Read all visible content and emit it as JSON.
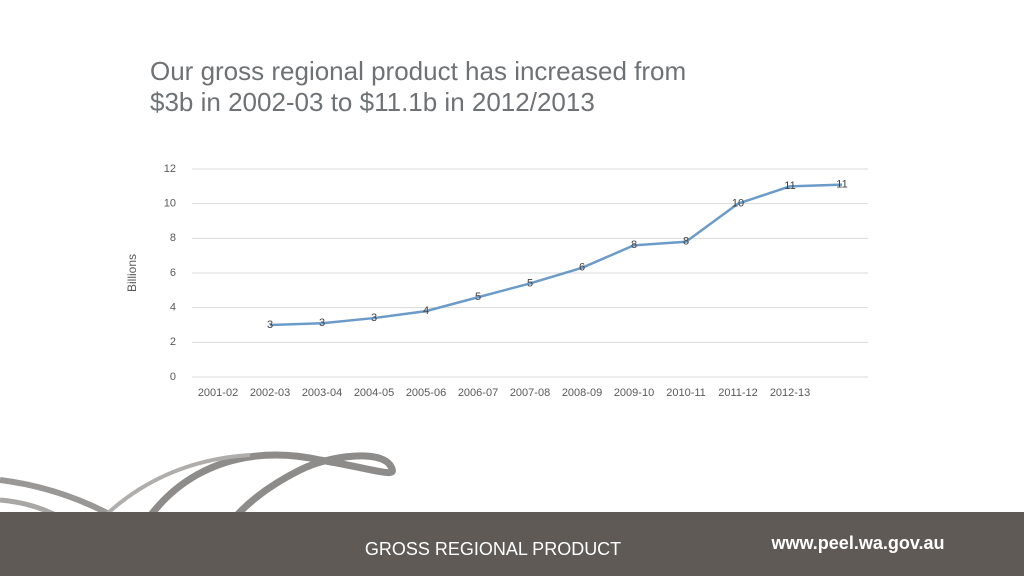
{
  "chart_data": {
    "type": "line",
    "title": [
      "Our gross regional product has increased from",
      "$3b in 2002-03 to $11.1b in 2012/2013"
    ],
    "y_label": "Billions",
    "categories": [
      "2001-02",
      "2002-03",
      "2003-04",
      "2004-05",
      "2005-06",
      "2006-07",
      "2007-08",
      "2008-09",
      "2009-10",
      "2010-11",
      "2011-12",
      "2012-13",
      null
    ],
    "values": [
      null,
      3.0,
      3.1,
      3.4,
      3.8,
      4.6,
      5.4,
      6.3,
      7.6,
      7.8,
      10.0,
      11.0,
      11.1
    ],
    "value_labels": [
      null,
      "3",
      "3",
      "3",
      "4",
      "5",
      "5",
      "6",
      "8",
      "8",
      "10",
      "11",
      "11"
    ],
    "color": "#6b9bc8",
    "ylim": [
      0,
      12
    ],
    "yticks": [
      0,
      2,
      4,
      6,
      8,
      10,
      12
    ],
    "grid": true
  },
  "footer": {
    "title": "GROSS REGIONAL PRODUCT",
    "url": "www.peel.wa.gov.au"
  }
}
